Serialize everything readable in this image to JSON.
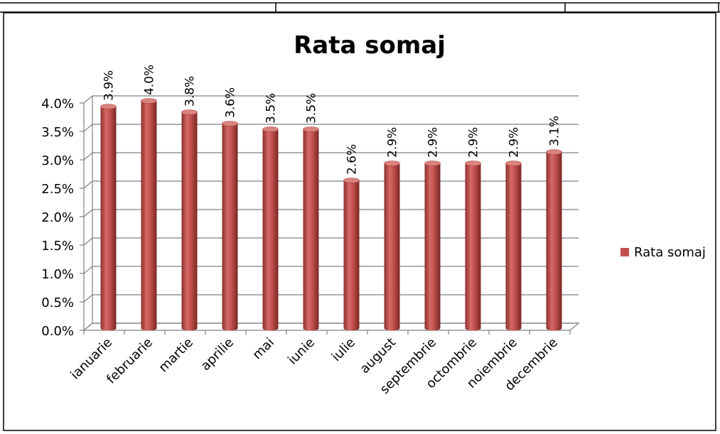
{
  "chart_data": {
    "type": "bar",
    "title": "Rata somaj",
    "categories": [
      "ianuarie",
      "februarie",
      "martie",
      "aprilie",
      "mai",
      "iunie",
      "iulie",
      "august",
      "septembrie",
      "octombrie",
      "noiembrie",
      "decembrie"
    ],
    "series": [
      {
        "name": "Rata somaj",
        "values": [
          3.9,
          4.0,
          3.8,
          3.6,
          3.5,
          3.5,
          2.6,
          2.9,
          2.9,
          2.9,
          2.9,
          3.1
        ],
        "data_labels": [
          "3.9%",
          "4.0%",
          "3.8%",
          "3.6%",
          "3.5%",
          "3.5%",
          "2.6%",
          "2.9%",
          "2.9%",
          "2.9%",
          "2.9%",
          "3.1%"
        ],
        "color": "#C0504D"
      }
    ],
    "y_tick_labels": [
      "0.0%",
      "0.5%",
      "1.0%",
      "1.5%",
      "2.0%",
      "2.5%",
      "3.0%",
      "3.5%",
      "4.0%"
    ],
    "ylim": [
      0,
      4.0
    ],
    "grid": true,
    "legend_position": "right",
    "style": "3d-cylinder"
  },
  "colors": {
    "bar": "#C0504D",
    "bar_dark": "#8B2E2B",
    "bar_top": "#D9837F",
    "gridline": "#808080",
    "text": "#000000"
  }
}
